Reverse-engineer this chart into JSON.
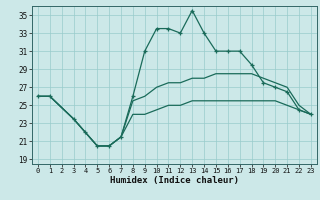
{
  "xlabel": "Humidex (Indice chaleur)",
  "bg_color": "#cce8e8",
  "grid_color": "#99cccc",
  "line_color": "#1a6b5a",
  "xlim": [
    -0.5,
    23.5
  ],
  "ylim": [
    18.5,
    36
  ],
  "xticks": [
    0,
    1,
    2,
    3,
    4,
    5,
    6,
    7,
    8,
    9,
    10,
    11,
    12,
    13,
    14,
    15,
    16,
    17,
    18,
    19,
    20,
    21,
    22,
    23
  ],
  "yticks": [
    19,
    21,
    23,
    25,
    27,
    29,
    31,
    33,
    35
  ],
  "line_top_x": [
    0,
    1,
    3,
    4,
    5,
    6,
    7,
    8,
    9,
    10,
    11,
    12,
    13,
    14,
    15,
    16,
    17,
    18,
    19,
    20,
    21,
    22,
    23
  ],
  "line_top_y": [
    26,
    26,
    23.5,
    22,
    20.5,
    20.5,
    21.5,
    26,
    31,
    33.5,
    33.5,
    33,
    35.5,
    33,
    31,
    31,
    31,
    29.5,
    27.5,
    27,
    26.5,
    24.5,
    24
  ],
  "line_mid_x": [
    0,
    1,
    3,
    4,
    5,
    6,
    7,
    8,
    9,
    10,
    11,
    12,
    13,
    14,
    15,
    16,
    17,
    18,
    19,
    20,
    21,
    22,
    23
  ],
  "line_mid_y": [
    26,
    26,
    23.5,
    22,
    20.5,
    20.5,
    21.5,
    25.5,
    26,
    27,
    27.5,
    27.5,
    28,
    28,
    28.5,
    28.5,
    28.5,
    28.5,
    28,
    27.5,
    27,
    25,
    24
  ],
  "line_bot_x": [
    0,
    1,
    3,
    4,
    5,
    6,
    7,
    8,
    9,
    10,
    11,
    12,
    13,
    14,
    15,
    16,
    17,
    18,
    19,
    20,
    21,
    22,
    23
  ],
  "line_bot_y": [
    26,
    26,
    23.5,
    22,
    20.5,
    20.5,
    21.5,
    24,
    24,
    24.5,
    25,
    25,
    25.5,
    25.5,
    25.5,
    25.5,
    25.5,
    25.5,
    25.5,
    25.5,
    25,
    24.5,
    24
  ]
}
